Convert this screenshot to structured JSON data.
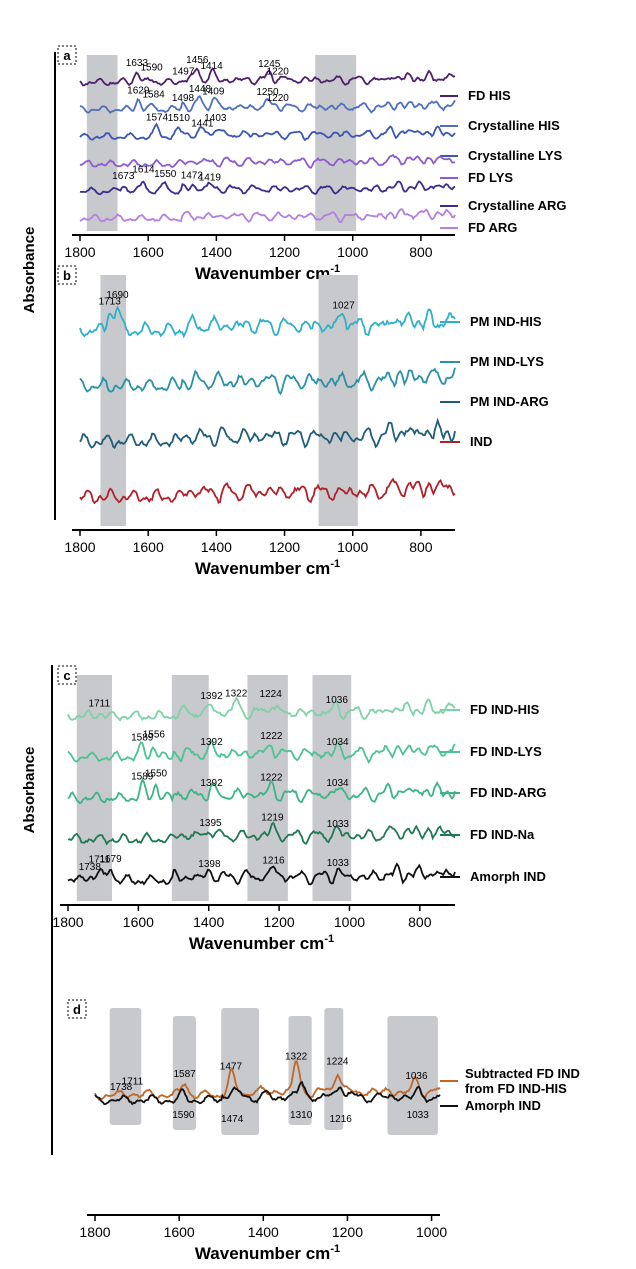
{
  "ylabel": "Absorbance",
  "chart_data": [
    {
      "id": "a",
      "panel_label": "a",
      "type": "line",
      "xlabel": "Wavenumber cm",
      "xlabel_sup": "-1",
      "xlim": [
        1800,
        700
      ],
      "xticks": [
        1800,
        1600,
        1400,
        1200,
        1000,
        800
      ],
      "shaded_regions": [
        [
          1780,
          1690
        ],
        [
          1110,
          990
        ]
      ],
      "series": [
        {
          "name": "FD HIS",
          "color": "#4e1f6e",
          "offset": 5.2,
          "peaks": [
            [
              1633,
              1.9
            ],
            [
              1590,
              0.6
            ],
            [
              1497,
              0.5
            ],
            [
              1456,
              1.9
            ],
            [
              1414,
              1.4
            ],
            [
              1245,
              1.2
            ],
            [
              1220,
              0.5
            ]
          ]
        },
        {
          "name": "Crystalline HIS",
          "color": "#4f6fbf",
          "offset": 3.8,
          "peaks": [
            [
              1629,
              1.8
            ],
            [
              1584,
              0.7
            ],
            [
              1498,
              0.6
            ],
            [
              1448,
              1.6
            ],
            [
              1409,
              1.7
            ],
            [
              1250,
              1.1
            ],
            [
              1220,
              0.6
            ]
          ]
        },
        {
          "name": "Crystalline LYS",
          "color": "#3b56b5",
          "offset": 2.6,
          "peaks": [
            [
              1574,
              1.9
            ],
            [
              1510,
              1.3
            ],
            [
              1441,
              0.9
            ],
            [
              1403,
              1.3
            ]
          ]
        },
        {
          "name": "FD LYS",
          "color": "#8e5ad1",
          "offset": 2.5,
          "peaks": []
        },
        {
          "name": "Crystalline ARG",
          "color": "#3a2d8f",
          "offset": 1.0,
          "peaks": [
            [
              1673,
              1.2
            ],
            [
              1614,
              1.8
            ],
            [
              1550,
              1.6
            ],
            [
              1472,
              0.8
            ],
            [
              1419,
              1.0
            ]
          ]
        },
        {
          "name": "FD ARG",
          "color": "#b37fe0",
          "offset": 0.8,
          "peaks": []
        }
      ]
    },
    {
      "id": "b",
      "panel_label": "b",
      "type": "line",
      "xlabel": "Wavenumber cm",
      "xlabel_sup": "-1",
      "xlim": [
        1800,
        700
      ],
      "xticks": [
        1800,
        1600,
        1400,
        1200,
        1000,
        800
      ],
      "shaded_regions": [
        [
          1740,
          1665
        ],
        [
          1100,
          985
        ]
      ],
      "series": [
        {
          "name": "PM IND-HIS",
          "color": "#2fb0c9",
          "offset": 4.6,
          "peaks": [
            [
              1713,
              1.7
            ],
            [
              1690,
              2.0
            ],
            [
              1027,
              1.4
            ]
          ]
        },
        {
          "name": "PM IND-LYS",
          "color": "#2991a6",
          "offset": 3.2,
          "peaks": []
        },
        {
          "name": "PM IND-ARG",
          "color": "#1f5d78",
          "offset": 1.8,
          "peaks": []
        },
        {
          "name": "IND",
          "color": "#b0202a",
          "offset": 0.4,
          "peaks": []
        }
      ]
    },
    {
      "id": "c",
      "panel_label": "c",
      "type": "line",
      "xlabel": "Wavenumber cm",
      "xlabel_sup": "-1",
      "xlim": [
        1800,
        700
      ],
      "xticks": [
        1800,
        1600,
        1400,
        1200,
        1000,
        800
      ],
      "shaded_regions": [
        [
          1775,
          1675
        ],
        [
          1505,
          1400
        ],
        [
          1290,
          1175
        ],
        [
          1105,
          995
        ]
      ],
      "series": [
        {
          "name": "FD IND-HIS",
          "color": "#7fd1a8",
          "offset": 6.4,
          "peaks": [
            [
              1711,
              0.5
            ],
            [
              1392,
              1.0
            ],
            [
              1322,
              1.6
            ],
            [
              1224,
              1.2
            ],
            [
              1036,
              0.9
            ]
          ]
        },
        {
          "name": "FD IND-LYS",
          "color": "#4cc393",
          "offset": 4.9,
          "peaks": [
            [
              1589,
              1.3
            ],
            [
              1556,
              1.3
            ],
            [
              1392,
              0.8
            ],
            [
              1222,
              1.1
            ],
            [
              1034,
              0.8
            ]
          ]
        },
        {
          "name": "FD IND-ARG",
          "color": "#3cb586",
          "offset": 3.4,
          "peaks": [
            [
              1589,
              1.5
            ],
            [
              1550,
              1.5
            ],
            [
              1392,
              0.8
            ],
            [
              1222,
              1.1
            ],
            [
              1034,
              0.8
            ]
          ]
        },
        {
          "name": "FD IND-Na",
          "color": "#1f7a53",
          "offset": 2.0,
          "peaks": [
            [
              1395,
              0.9
            ],
            [
              1219,
              1.2
            ],
            [
              1033,
              0.8
            ]
          ]
        },
        {
          "name": "Amorph IND",
          "color": "#111111",
          "offset": 0.4,
          "peaks": [
            [
              1738,
              0.6
            ],
            [
              1711,
              1.1
            ],
            [
              1679,
              1.5
            ],
            [
              1398,
              0.6
            ],
            [
              1216,
              1.3
            ],
            [
              1033,
              0.7
            ]
          ]
        }
      ]
    },
    {
      "id": "d",
      "panel_label": "d",
      "type": "line",
      "xlabel": "Wavenumber cm",
      "xlabel_sup": "-1",
      "xlim": [
        1800,
        980
      ],
      "xticks": [
        1800,
        1600,
        1400,
        1200,
        1000
      ],
      "shaded_regions": [
        [
          1765,
          1690
        ],
        [
          1615,
          1560
        ],
        [
          1500,
          1410
        ],
        [
          1340,
          1285
        ],
        [
          1255,
          1210
        ],
        [
          1105,
          985
        ]
      ],
      "series": [
        {
          "name": "Subtracted FD IND from FD IND-HIS",
          "name_lines": [
            "Subtracted FD IND",
            "from FD IND-HIS"
          ],
          "color": "#c0672a",
          "offset": 0,
          "peaks": [
            [
              1738,
              0.0
            ],
            [
              1711,
              0.3
            ],
            [
              1587,
              1.6
            ],
            [
              1477,
              2.2
            ],
            [
              1322,
              3.8
            ],
            [
              1224,
              2.8
            ],
            [
              1036,
              1.4
            ]
          ]
        },
        {
          "name": "Amorph IND",
          "color": "#111111",
          "offset": 0,
          "peaks": [
            [
              1590,
              0.8
            ],
            [
              1474,
              1.2
            ],
            [
              1310,
              1.8
            ],
            [
              1216,
              1.9
            ],
            [
              1033,
              0.6
            ]
          ]
        }
      ]
    }
  ]
}
